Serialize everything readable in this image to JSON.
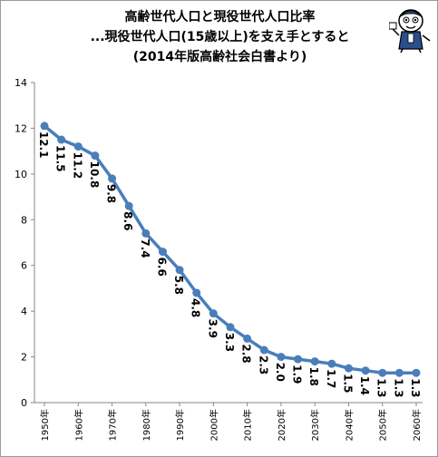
{
  "chart_data": {
    "type": "line",
    "title_lines": [
      "高齢世代人口と現役世代人口比率",
      "...現役世代人口(15歳以上)を支え手とすると",
      "(2014年版高齢社会白書より)"
    ],
    "x": [
      1950,
      1955,
      1960,
      1965,
      1970,
      1975,
      1980,
      1985,
      1990,
      1995,
      2000,
      2005,
      2010,
      2015,
      2020,
      2025,
      2030,
      2035,
      2040,
      2045,
      2050,
      2055,
      2060
    ],
    "values": [
      12.1,
      11.5,
      11.2,
      10.8,
      9.8,
      8.6,
      7.4,
      6.6,
      5.8,
      4.8,
      3.9,
      3.3,
      2.8,
      2.3,
      2.0,
      1.9,
      1.8,
      1.7,
      1.5,
      1.4,
      1.3,
      1.3,
      1.3
    ],
    "data_labels": [
      "12.1",
      "11.5",
      "11.2",
      "10.8",
      "9.8",
      "8.6",
      "7.4",
      "6.6",
      "5.8",
      "4.8",
      "3.9",
      "3.3",
      "2.8",
      "2.3",
      "2.0",
      "1.9",
      "1.8",
      "1.7",
      "1.5",
      "1.4",
      "1.3",
      "1.3",
      "1.3"
    ],
    "x_tick_labels": [
      "1950年",
      "1960年",
      "1970年",
      "1980年",
      "1990年",
      "2000年",
      "2010年",
      "2020年",
      "2030年",
      "2040年",
      "2050年",
      "2060年"
    ],
    "y_tick_labels": [
      "0",
      "2",
      "4",
      "6",
      "8",
      "10",
      "12",
      "14"
    ],
    "ylim": [
      0,
      14
    ],
    "grid": false,
    "legend": "none",
    "colors": {
      "line": "#4a7ebb",
      "marker": "#4a7ebb",
      "axis": "#868686"
    }
  },
  "mascot": {
    "icon": "cartoon-reporter-mascot"
  }
}
